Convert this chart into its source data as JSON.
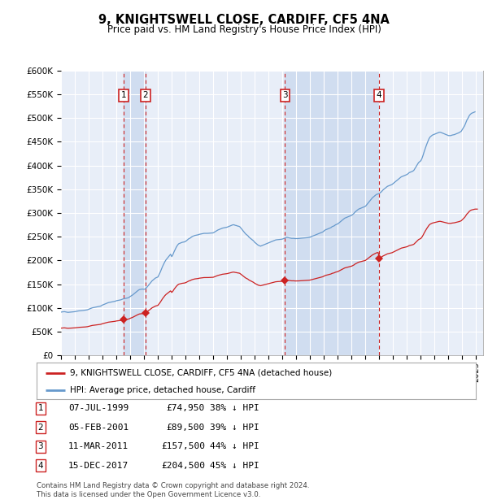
{
  "title": "9, KNIGHTSWELL CLOSE, CARDIFF, CF5 4NA",
  "subtitle": "Price paid vs. HM Land Registry's House Price Index (HPI)",
  "ylim": [
    0,
    600000
  ],
  "xlim_start": 1995.0,
  "xlim_end": 2025.5,
  "sales": [
    {
      "num": 1,
      "date": "07-JUL-1999",
      "date_x": 1999.52,
      "price": 74950,
      "pct": "38% ↓ HPI"
    },
    {
      "num": 2,
      "date": "05-FEB-2001",
      "date_x": 2001.1,
      "price": 89500,
      "pct": "39% ↓ HPI"
    },
    {
      "num": 3,
      "date": "11-MAR-2011",
      "date_x": 2011.19,
      "price": 157500,
      "pct": "44% ↓ HPI"
    },
    {
      "num": 4,
      "date": "15-DEC-2017",
      "date_x": 2017.96,
      "price": 204500,
      "pct": "45% ↓ HPI"
    }
  ],
  "hpi_line_color": "#6699cc",
  "hpi_line_label": "HPI: Average price, detached house, Cardiff",
  "hpi_x": [
    1995.0,
    1995.083,
    1995.167,
    1995.25,
    1995.333,
    1995.417,
    1995.5,
    1995.583,
    1995.667,
    1995.75,
    1995.833,
    1995.917,
    1996.0,
    1996.083,
    1996.167,
    1996.25,
    1996.333,
    1996.417,
    1996.5,
    1996.583,
    1996.667,
    1996.75,
    1996.833,
    1996.917,
    1997.0,
    1997.083,
    1997.167,
    1997.25,
    1997.333,
    1997.417,
    1997.5,
    1997.583,
    1997.667,
    1997.75,
    1997.833,
    1997.917,
    1998.0,
    1998.083,
    1998.167,
    1998.25,
    1998.333,
    1998.417,
    1998.5,
    1998.583,
    1998.667,
    1998.75,
    1998.833,
    1998.917,
    1999.0,
    1999.083,
    1999.167,
    1999.25,
    1999.333,
    1999.417,
    1999.5,
    1999.583,
    1999.667,
    1999.75,
    1999.833,
    1999.917,
    2000.0,
    2000.083,
    2000.167,
    2000.25,
    2000.333,
    2000.417,
    2000.5,
    2000.583,
    2000.667,
    2000.75,
    2000.833,
    2000.917,
    2001.0,
    2001.083,
    2001.167,
    2001.25,
    2001.333,
    2001.417,
    2001.5,
    2001.583,
    2001.667,
    2001.75,
    2001.833,
    2001.917,
    2002.0,
    2002.083,
    2002.167,
    2002.25,
    2002.333,
    2002.417,
    2002.5,
    2002.583,
    2002.667,
    2002.75,
    2002.833,
    2002.917,
    2003.0,
    2003.083,
    2003.167,
    2003.25,
    2003.333,
    2003.417,
    2003.5,
    2003.583,
    2003.667,
    2003.75,
    2003.833,
    2003.917,
    2004.0,
    2004.083,
    2004.167,
    2004.25,
    2004.333,
    2004.417,
    2004.5,
    2004.583,
    2004.667,
    2004.75,
    2004.833,
    2004.917,
    2005.0,
    2005.083,
    2005.167,
    2005.25,
    2005.333,
    2005.417,
    2005.5,
    2005.583,
    2005.667,
    2005.75,
    2005.833,
    2005.917,
    2006.0,
    2006.083,
    2006.167,
    2006.25,
    2006.333,
    2006.417,
    2006.5,
    2006.583,
    2006.667,
    2006.75,
    2006.833,
    2006.917,
    2007.0,
    2007.083,
    2007.167,
    2007.25,
    2007.333,
    2007.417,
    2007.5,
    2007.583,
    2007.667,
    2007.75,
    2007.833,
    2007.917,
    2008.0,
    2008.083,
    2008.167,
    2008.25,
    2008.333,
    2008.417,
    2008.5,
    2008.583,
    2008.667,
    2008.75,
    2008.833,
    2008.917,
    2009.0,
    2009.083,
    2009.167,
    2009.25,
    2009.333,
    2009.417,
    2009.5,
    2009.583,
    2009.667,
    2009.75,
    2009.833,
    2009.917,
    2010.0,
    2010.083,
    2010.167,
    2010.25,
    2010.333,
    2010.417,
    2010.5,
    2010.583,
    2010.667,
    2010.75,
    2010.833,
    2010.917,
    2011.0,
    2011.083,
    2011.167,
    2011.25,
    2011.333,
    2011.417,
    2011.5,
    2011.583,
    2011.667,
    2011.75,
    2011.833,
    2011.917,
    2012.0,
    2012.083,
    2012.167,
    2012.25,
    2012.333,
    2012.417,
    2012.5,
    2012.583,
    2012.667,
    2012.75,
    2012.833,
    2012.917,
    2013.0,
    2013.083,
    2013.167,
    2013.25,
    2013.333,
    2013.417,
    2013.5,
    2013.583,
    2013.667,
    2013.75,
    2013.833,
    2013.917,
    2014.0,
    2014.083,
    2014.167,
    2014.25,
    2014.333,
    2014.417,
    2014.5,
    2014.583,
    2014.667,
    2014.75,
    2014.833,
    2014.917,
    2015.0,
    2015.083,
    2015.167,
    2015.25,
    2015.333,
    2015.417,
    2015.5,
    2015.583,
    2015.667,
    2015.75,
    2015.833,
    2015.917,
    2016.0,
    2016.083,
    2016.167,
    2016.25,
    2016.333,
    2016.417,
    2016.5,
    2016.583,
    2016.667,
    2016.75,
    2016.833,
    2016.917,
    2017.0,
    2017.083,
    2017.167,
    2017.25,
    2017.333,
    2017.417,
    2017.5,
    2017.583,
    2017.667,
    2017.75,
    2017.833,
    2017.917,
    2018.0,
    2018.083,
    2018.167,
    2018.25,
    2018.333,
    2018.417,
    2018.5,
    2018.583,
    2018.667,
    2018.75,
    2018.833,
    2018.917,
    2019.0,
    2019.083,
    2019.167,
    2019.25,
    2019.333,
    2019.417,
    2019.5,
    2019.583,
    2019.667,
    2019.75,
    2019.833,
    2019.917,
    2020.0,
    2020.083,
    2020.167,
    2020.25,
    2020.333,
    2020.417,
    2020.5,
    2020.583,
    2020.667,
    2020.75,
    2020.833,
    2020.917,
    2021.0,
    2021.083,
    2021.167,
    2021.25,
    2021.333,
    2021.417,
    2021.5,
    2021.583,
    2021.667,
    2021.75,
    2021.833,
    2021.917,
    2022.0,
    2022.083,
    2022.167,
    2022.25,
    2022.333,
    2022.417,
    2022.5,
    2022.583,
    2022.667,
    2022.75,
    2022.833,
    2022.917,
    2023.0,
    2023.083,
    2023.167,
    2023.25,
    2023.333,
    2023.417,
    2023.5,
    2023.583,
    2023.667,
    2023.75,
    2023.833,
    2023.917,
    2024.0,
    2024.083,
    2024.167,
    2024.25,
    2024.333,
    2024.417,
    2024.5,
    2024.583,
    2024.667,
    2024.75,
    2024.833,
    2024.917
  ],
  "hpi_y": [
    91000,
    91500,
    91800,
    92000,
    91500,
    91000,
    90500,
    90800,
    91000,
    91200,
    91500,
    91700,
    92000,
    92500,
    93000,
    93500,
    93800,
    94000,
    94200,
    94500,
    94800,
    95000,
    95500,
    96000,
    97000,
    98000,
    99000,
    100000,
    100500,
    101000,
    101500,
    102000,
    102500,
    103000,
    103500,
    104500,
    106000,
    107000,
    108000,
    109000,
    110000,
    111000,
    111500,
    112000,
    112500,
    113000,
    113500,
    114000,
    115000,
    115500,
    116000,
    116500,
    117000,
    118000,
    119000,
    119500,
    120000,
    120500,
    121000,
    122000,
    124000,
    125500,
    127000,
    129000,
    131000,
    133000,
    135000,
    137000,
    138500,
    139000,
    139500,
    139500,
    139000,
    140000,
    142000,
    145000,
    148000,
    151000,
    154000,
    157000,
    159000,
    161000,
    163000,
    164000,
    165000,
    170000,
    175000,
    181000,
    187000,
    192000,
    197000,
    201000,
    204000,
    207000,
    210000,
    213000,
    208000,
    212000,
    218000,
    223000,
    228000,
    232000,
    235000,
    236000,
    237000,
    238000,
    238500,
    239000,
    240000,
    242000,
    244000,
    246000,
    247000,
    249000,
    250500,
    251500,
    252500,
    253000,
    253500,
    254000,
    255000,
    255500,
    256000,
    256500,
    257000,
    257000,
    257000,
    257000,
    257200,
    257400,
    257600,
    257800,
    258000,
    259500,
    261000,
    262500,
    264000,
    265000,
    266000,
    267000,
    268000,
    268500,
    269000,
    269500,
    270000,
    271000,
    272000,
    273000,
    274000,
    275000,
    275000,
    274000,
    273500,
    272500,
    272000,
    271000,
    268000,
    265000,
    262000,
    259000,
    256000,
    254000,
    252000,
    249000,
    247000,
    245000,
    243000,
    241000,
    238000,
    236000,
    234000,
    232000,
    231000,
    230000,
    231000,
    232000,
    233000,
    234000,
    235000,
    236000,
    237000,
    238000,
    239000,
    240000,
    241000,
    242000,
    243000,
    243500,
    243800,
    244000,
    244200,
    244500,
    245000,
    246000,
    247000,
    248000,
    248500,
    248000,
    247500,
    247000,
    246500,
    246500,
    246500,
    246000,
    246000,
    246000,
    246200,
    246500,
    246800,
    247000,
    247200,
    247400,
    247600,
    247800,
    248000,
    248500,
    249000,
    250000,
    251000,
    252000,
    253000,
    254000,
    255000,
    256000,
    257000,
    258000,
    259000,
    260000,
    262000,
    264000,
    265000,
    266000,
    267000,
    268000,
    269000,
    271000,
    272000,
    273000,
    275000,
    276000,
    277000,
    279000,
    281000,
    283000,
    285000,
    287000,
    289000,
    290000,
    291000,
    292000,
    293000,
    294000,
    295000,
    297000,
    299000,
    302000,
    304000,
    306000,
    308000,
    309000,
    310000,
    311000,
    312000,
    313000,
    314000,
    317000,
    320000,
    323000,
    326000,
    329000,
    332000,
    334000,
    336000,
    338000,
    339500,
    340000,
    341000,
    343000,
    345000,
    348000,
    350000,
    352000,
    354000,
    356000,
    357000,
    358000,
    359000,
    360000,
    362000,
    364000,
    366000,
    368000,
    370000,
    372000,
    374000,
    376000,
    377000,
    378000,
    379000,
    380000,
    381000,
    383000,
    385000,
    386000,
    387000,
    388000,
    390000,
    394000,
    398000,
    402000,
    406000,
    408000,
    410000,
    415000,
    422000,
    430000,
    437000,
    444000,
    450000,
    456000,
    460000,
    462000,
    464000,
    465000,
    466000,
    467000,
    468000,
    469000,
    470000,
    470000,
    469000,
    468000,
    467000,
    466000,
    465000,
    464000,
    463000,
    463000,
    463000,
    464000,
    464500,
    465000,
    466000,
    467000,
    468000,
    469000,
    470500,
    472000,
    476000,
    480000,
    484000,
    490000,
    496000,
    500000,
    505000,
    508000,
    510000,
    511000,
    512000,
    513000
  ],
  "price_line_color": "#cc2222",
  "price_line_label": "9, KNIGHTSWELL CLOSE, CARDIFF, CF5 4NA (detached house)",
  "background_color": "#e8eef8",
  "panel_bg": "#e8eef8",
  "grid_color": "#ffffff",
  "shade_color": "#d0ddf0",
  "footnote": "Contains HM Land Registry data © Crown copyright and database right 2024.\nThis data is licensed under the Open Government Licence v3.0."
}
